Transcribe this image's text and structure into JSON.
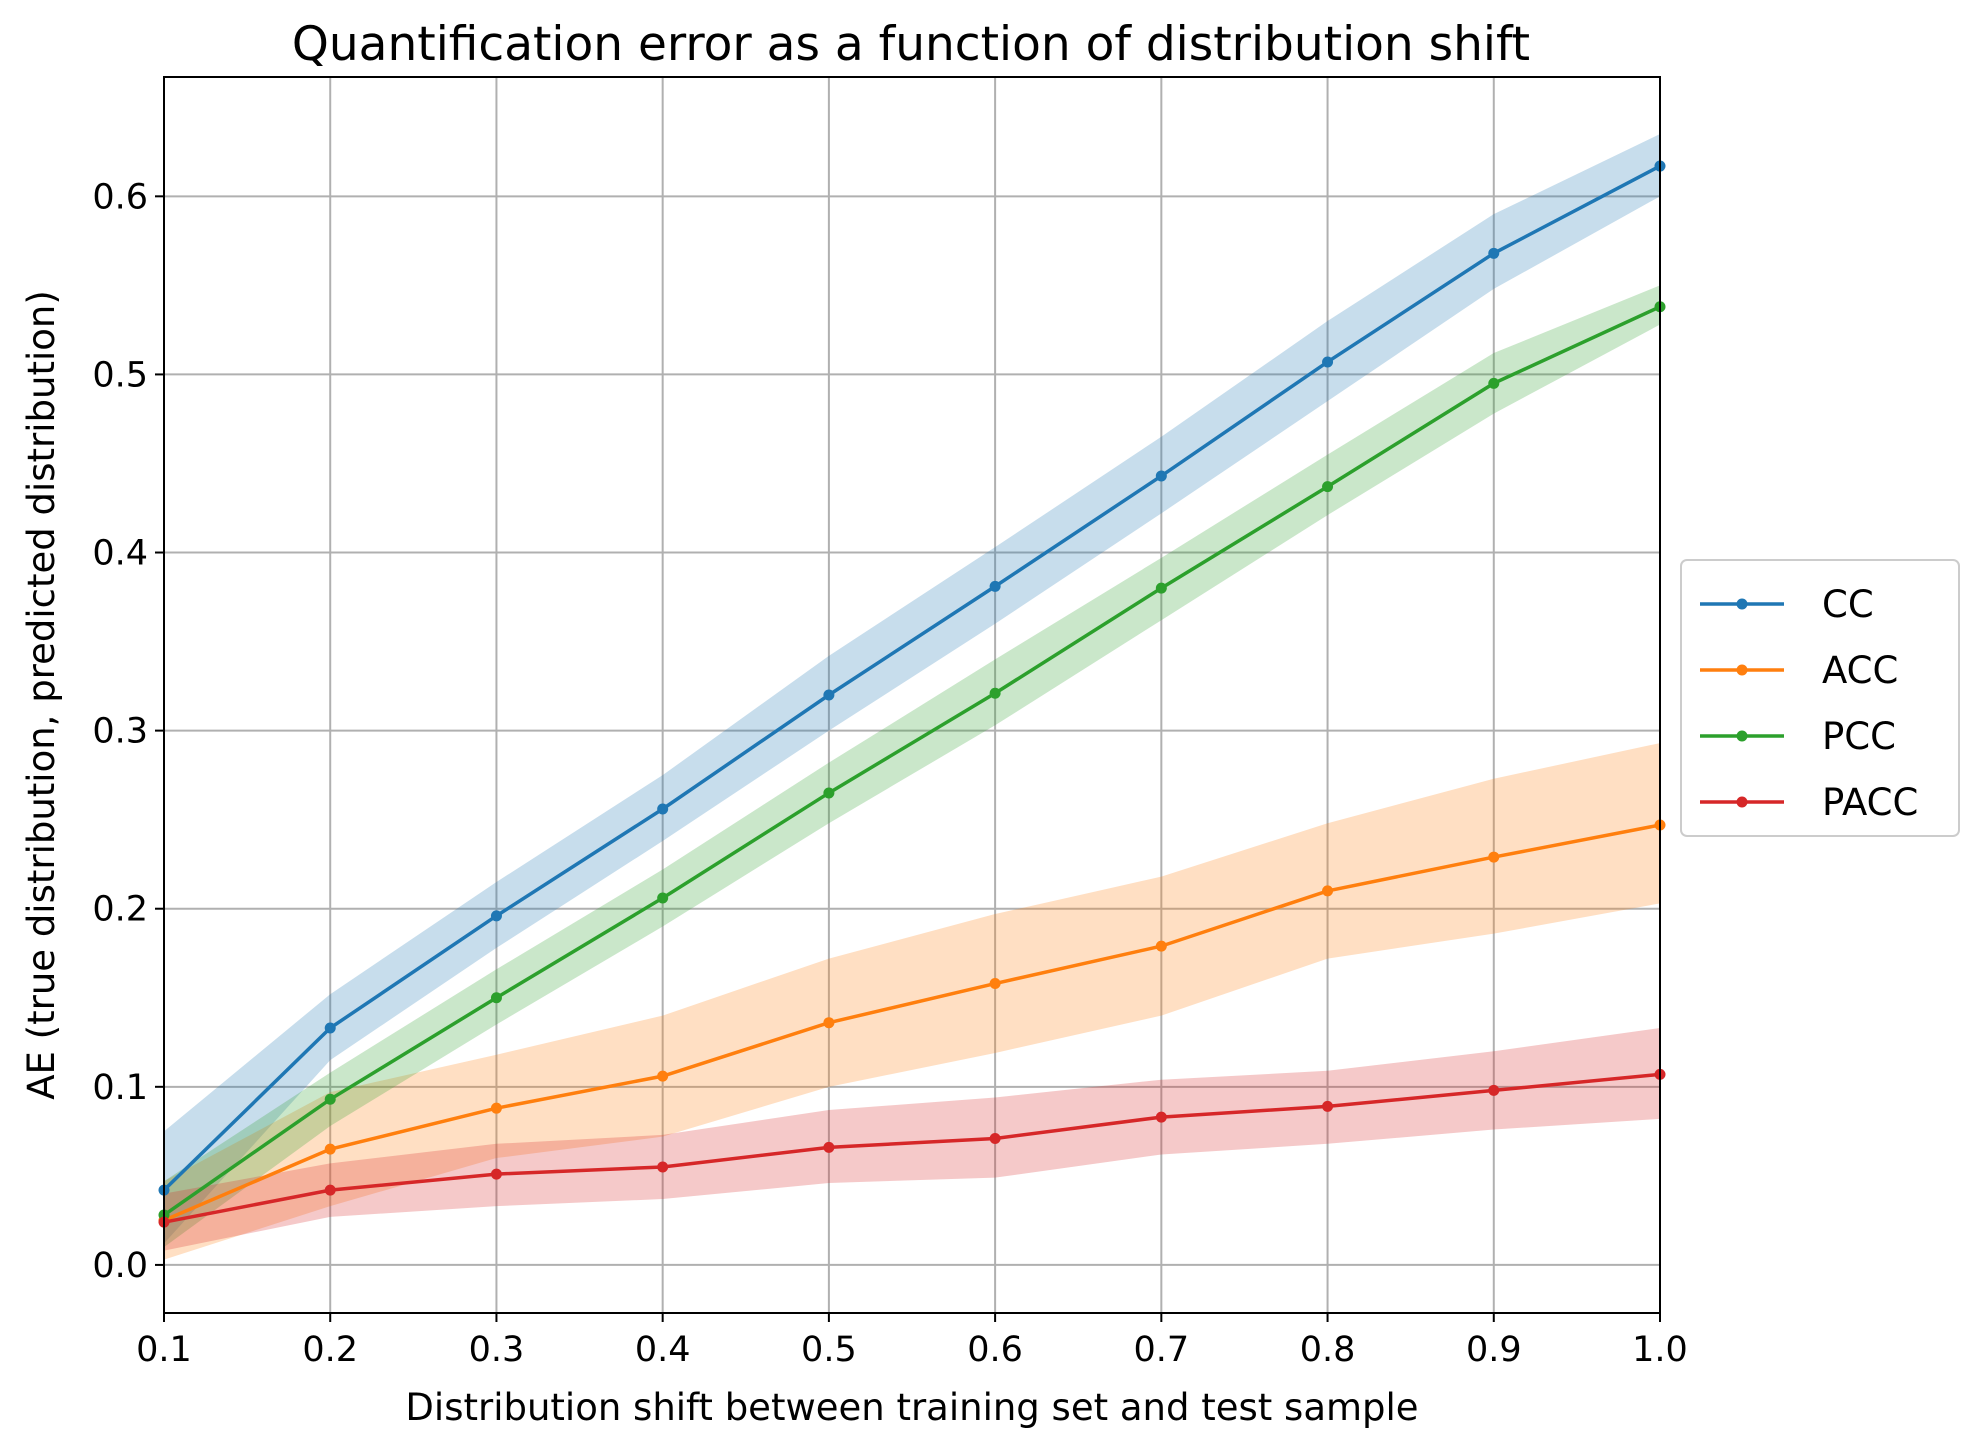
{
  "chart_data": {
    "type": "line",
    "title": "Quantification error as a function of distribution shift",
    "xlabel": "Distribution shift between training set and test sample",
    "ylabel": "AE (true distribution, predicted distribution)",
    "x": [
      0.1,
      0.2,
      0.3,
      0.4,
      0.5,
      0.6,
      0.7,
      0.8,
      0.9,
      1.0
    ],
    "xlim": [
      0.1,
      1.0
    ],
    "ylim": [
      -0.027,
      0.667
    ],
    "xticks": [
      "0.1",
      "0.2",
      "0.3",
      "0.4",
      "0.5",
      "0.6",
      "0.7",
      "0.8",
      "0.9",
      "1.0"
    ],
    "yticks": [
      "0.0",
      "0.1",
      "0.2",
      "0.3",
      "0.4",
      "0.5",
      "0.6"
    ],
    "grid": true,
    "legend_position": "outside-right",
    "series": [
      {
        "name": "CC",
        "color": "#1f77b4",
        "values": [
          0.042,
          0.133,
          0.196,
          0.256,
          0.32,
          0.381,
          0.443,
          0.507,
          0.568,
          0.617
        ],
        "lower": [
          0.012,
          0.115,
          0.178,
          0.238,
          0.3,
          0.36,
          0.422,
          0.485,
          0.548,
          0.6
        ],
        "upper": [
          0.075,
          0.152,
          0.215,
          0.275,
          0.342,
          0.403,
          0.465,
          0.53,
          0.59,
          0.635
        ]
      },
      {
        "name": "ACC",
        "color": "#ff7f0e",
        "values": [
          0.025,
          0.065,
          0.088,
          0.106,
          0.136,
          0.158,
          0.179,
          0.21,
          0.229,
          0.247
        ],
        "lower": [
          0.003,
          0.033,
          0.06,
          0.072,
          0.1,
          0.119,
          0.14,
          0.172,
          0.186,
          0.203
        ],
        "upper": [
          0.047,
          0.097,
          0.118,
          0.14,
          0.172,
          0.197,
          0.218,
          0.248,
          0.273,
          0.293
        ]
      },
      {
        "name": "PCC",
        "color": "#2ca02c",
        "values": [
          0.028,
          0.093,
          0.15,
          0.206,
          0.265,
          0.321,
          0.38,
          0.437,
          0.495,
          0.538
        ],
        "lower": [
          0.01,
          0.078,
          0.135,
          0.19,
          0.248,
          0.303,
          0.362,
          0.421,
          0.478,
          0.528
        ],
        "upper": [
          0.047,
          0.108,
          0.166,
          0.222,
          0.282,
          0.34,
          0.397,
          0.455,
          0.512,
          0.55
        ]
      },
      {
        "name": "PACC",
        "color": "#d62728",
        "values": [
          0.024,
          0.042,
          0.051,
          0.055,
          0.066,
          0.071,
          0.083,
          0.089,
          0.098,
          0.107
        ],
        "lower": [
          0.008,
          0.027,
          0.033,
          0.037,
          0.046,
          0.049,
          0.062,
          0.068,
          0.076,
          0.082
        ],
        "upper": [
          0.04,
          0.057,
          0.068,
          0.073,
          0.087,
          0.094,
          0.104,
          0.109,
          0.12,
          0.133
        ]
      }
    ]
  }
}
